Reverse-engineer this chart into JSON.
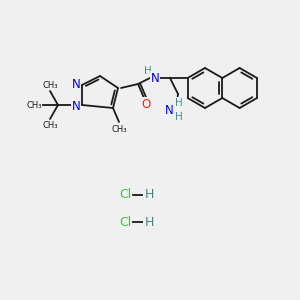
{
  "background_color": "#f0f0f0",
  "bond_color": "#1a1a1a",
  "nitrogen_color": "#0000ff",
  "oxygen_color": "#ff2200",
  "nh_color": "#4a9090",
  "cl_color": "#33cc33",
  "h_color": "#4a8080",
  "figsize": [
    3.0,
    3.0
  ],
  "dpi": 100,
  "HCl_1": [
    150,
    200
  ],
  "HCl_2": [
    150,
    230
  ]
}
